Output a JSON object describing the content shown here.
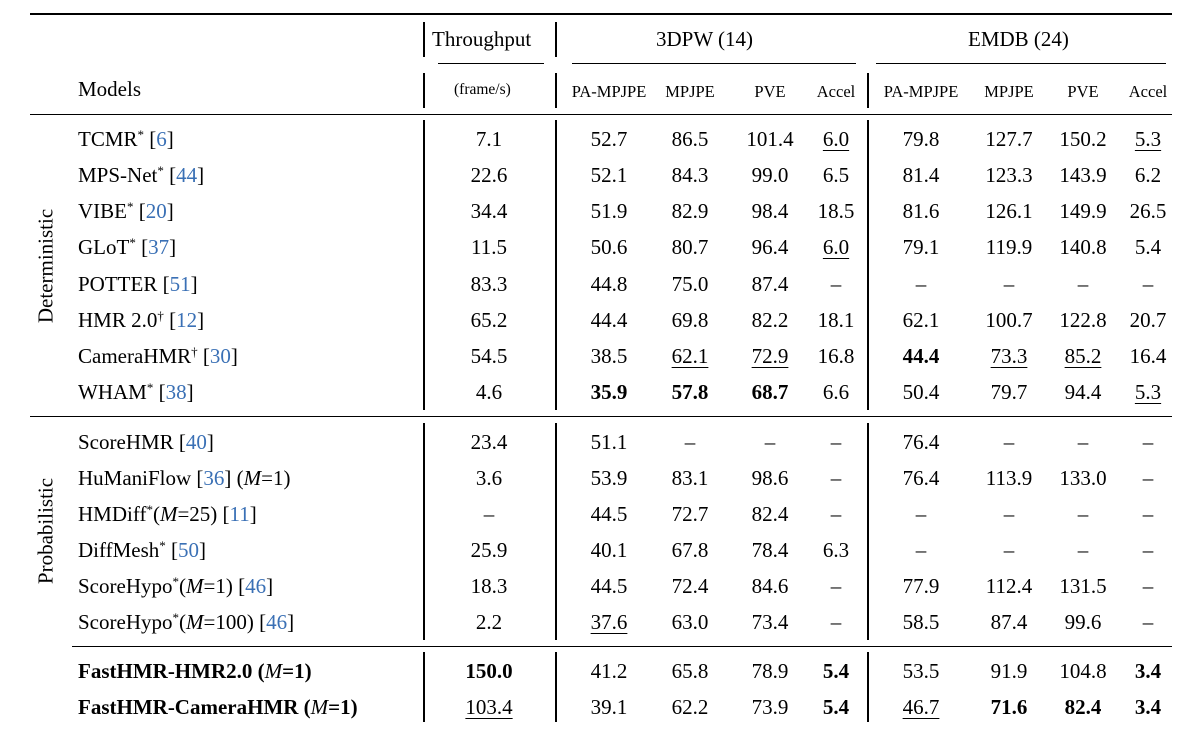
{
  "header": {
    "models": "Models",
    "throughput": "Throughput",
    "throughput_unit": "(frame/s)",
    "group_3dpw": "3DPW (14)",
    "group_emdb": "EMDB (24)",
    "metrics": [
      "PA-MPJPE",
      "MPJPE",
      "PVE",
      "Accel",
      "PA-MPJPE",
      "MPJPE",
      "PVE",
      "Accel"
    ]
  },
  "groups": {
    "deterministic": "Deterministic",
    "probabilistic": "Probabilistic"
  },
  "rows": [
    {
      "section": "det",
      "bold_name": false,
      "parts": [
        {
          "t": "TCMR"
        },
        {
          "t": "*",
          "k": "sup"
        },
        {
          "t": " ["
        },
        {
          "t": "6",
          "k": "ref"
        },
        {
          "t": "]"
        }
      ],
      "values": [
        "7.1",
        "52.7",
        "86.5",
        "101.4",
        "6.0",
        "79.8",
        "127.7",
        "150.2",
        "5.3"
      ],
      "bold": [],
      "underline": [
        4,
        8
      ]
    },
    {
      "section": "det",
      "bold_name": false,
      "parts": [
        {
          "t": "MPS-Net"
        },
        {
          "t": "*",
          "k": "sup"
        },
        {
          "t": " ["
        },
        {
          "t": "44",
          "k": "ref"
        },
        {
          "t": "]"
        }
      ],
      "values": [
        "22.6",
        "52.1",
        "84.3",
        "99.0",
        "6.5",
        "81.4",
        "123.3",
        "143.9",
        "6.2"
      ],
      "bold": [],
      "underline": []
    },
    {
      "section": "det",
      "bold_name": false,
      "parts": [
        {
          "t": "VIBE"
        },
        {
          "t": "*",
          "k": "sup"
        },
        {
          "t": " ["
        },
        {
          "t": "20",
          "k": "ref"
        },
        {
          "t": "]"
        }
      ],
      "values": [
        "34.4",
        "51.9",
        "82.9",
        "98.4",
        "18.5",
        "81.6",
        "126.1",
        "149.9",
        "26.5"
      ],
      "bold": [],
      "underline": []
    },
    {
      "section": "det",
      "bold_name": false,
      "parts": [
        {
          "t": "GLoT"
        },
        {
          "t": "*",
          "k": "sup"
        },
        {
          "t": " ["
        },
        {
          "t": "37",
          "k": "ref"
        },
        {
          "t": "]"
        }
      ],
      "values": [
        "11.5",
        "50.6",
        "80.7",
        "96.4",
        "6.0",
        "79.1",
        "119.9",
        "140.8",
        "5.4"
      ],
      "bold": [],
      "underline": [
        4
      ]
    },
    {
      "section": "det",
      "bold_name": false,
      "parts": [
        {
          "t": "POTTER ["
        },
        {
          "t": "51",
          "k": "ref"
        },
        {
          "t": "]"
        }
      ],
      "values": [
        "83.3",
        "44.8",
        "75.0",
        "87.4",
        "–",
        "–",
        "–",
        "–",
        "–"
      ],
      "bold": [],
      "underline": []
    },
    {
      "section": "det",
      "bold_name": false,
      "parts": [
        {
          "t": "HMR 2.0"
        },
        {
          "t": "†",
          "k": "sup"
        },
        {
          "t": " ["
        },
        {
          "t": "12",
          "k": "ref"
        },
        {
          "t": "]"
        }
      ],
      "values": [
        "65.2",
        "44.4",
        "69.8",
        "82.2",
        "18.1",
        "62.1",
        "100.7",
        "122.8",
        "20.7"
      ],
      "bold": [],
      "underline": []
    },
    {
      "section": "det",
      "bold_name": false,
      "parts": [
        {
          "t": "CameraHMR"
        },
        {
          "t": "†",
          "k": "sup"
        },
        {
          "t": " ["
        },
        {
          "t": "30",
          "k": "ref"
        },
        {
          "t": "]"
        }
      ],
      "values": [
        "54.5",
        "38.5",
        "62.1",
        "72.9",
        "16.8",
        "44.4",
        "73.3",
        "85.2",
        "16.4"
      ],
      "bold": [
        5
      ],
      "underline": [
        2,
        3,
        6,
        7
      ]
    },
    {
      "section": "det",
      "bold_name": false,
      "parts": [
        {
          "t": "WHAM"
        },
        {
          "t": "*",
          "k": "sup"
        },
        {
          "t": " ["
        },
        {
          "t": "38",
          "k": "ref"
        },
        {
          "t": "]"
        }
      ],
      "values": [
        "4.6",
        "35.9",
        "57.8",
        "68.7",
        "6.6",
        "50.4",
        "79.7",
        "94.4",
        "5.3"
      ],
      "bold": [
        1,
        2,
        3
      ],
      "underline": [
        8
      ]
    },
    {
      "section": "prob",
      "bold_name": false,
      "parts": [
        {
          "t": "ScoreHMR ["
        },
        {
          "t": "40",
          "k": "ref"
        },
        {
          "t": "]"
        }
      ],
      "values": [
        "23.4",
        "51.1",
        "–",
        "–",
        "–",
        "76.4",
        "–",
        "–",
        "–"
      ],
      "bold": [],
      "underline": []
    },
    {
      "section": "prob",
      "bold_name": false,
      "parts": [
        {
          "t": "HuManiFlow ["
        },
        {
          "t": "36",
          "k": "ref"
        },
        {
          "t": "] ("
        },
        {
          "t": "M",
          "k": "it"
        },
        {
          "t": "=1)"
        }
      ],
      "values": [
        "3.6",
        "53.9",
        "83.1",
        "98.6",
        "–",
        "76.4",
        "113.9",
        "133.0",
        "–"
      ],
      "bold": [],
      "underline": []
    },
    {
      "section": "prob",
      "bold_name": false,
      "parts": [
        {
          "t": "HMDiff"
        },
        {
          "t": "*",
          "k": "sup"
        },
        {
          "t": "("
        },
        {
          "t": "M",
          "k": "it"
        },
        {
          "t": "=25) ["
        },
        {
          "t": "11",
          "k": "ref"
        },
        {
          "t": "]"
        }
      ],
      "values": [
        "–",
        "44.5",
        "72.7",
        "82.4",
        "–",
        "–",
        "–",
        "–",
        "–"
      ],
      "bold": [],
      "underline": []
    },
    {
      "section": "prob",
      "bold_name": false,
      "parts": [
        {
          "t": "DiffMesh"
        },
        {
          "t": "*",
          "k": "sup"
        },
        {
          "t": " ["
        },
        {
          "t": "50",
          "k": "ref"
        },
        {
          "t": "]"
        }
      ],
      "values": [
        "25.9",
        "40.1",
        "67.8",
        "78.4",
        "6.3",
        "–",
        "–",
        "–",
        "–"
      ],
      "bold": [],
      "underline": []
    },
    {
      "section": "prob",
      "bold_name": false,
      "parts": [
        {
          "t": "ScoreHypo"
        },
        {
          "t": "*",
          "k": "sup"
        },
        {
          "t": "("
        },
        {
          "t": "M",
          "k": "it"
        },
        {
          "t": "=1) ["
        },
        {
          "t": "46",
          "k": "ref"
        },
        {
          "t": "]"
        }
      ],
      "values": [
        "18.3",
        "44.5",
        "72.4",
        "84.6",
        "–",
        "77.9",
        "112.4",
        "131.5",
        "–"
      ],
      "bold": [],
      "underline": []
    },
    {
      "section": "prob",
      "bold_name": false,
      "parts": [
        {
          "t": "ScoreHypo"
        },
        {
          "t": "*",
          "k": "sup"
        },
        {
          "t": "("
        },
        {
          "t": "M",
          "k": "it"
        },
        {
          "t": "=100) ["
        },
        {
          "t": "46",
          "k": "ref"
        },
        {
          "t": "]"
        }
      ],
      "values": [
        "2.2",
        "37.6",
        "63.0",
        "73.4",
        "–",
        "58.5",
        "87.4",
        "99.6",
        "–"
      ],
      "bold": [],
      "underline": [
        1
      ]
    },
    {
      "section": "ours",
      "bold_name": true,
      "parts": [
        {
          "t": "FastHMR-HMR2.0 ("
        },
        {
          "t": "M",
          "k": "it"
        },
        {
          "t": "=1)"
        }
      ],
      "values": [
        "150.0",
        "41.2",
        "65.8",
        "78.9",
        "5.4",
        "53.5",
        "91.9",
        "104.8",
        "3.4"
      ],
      "bold": [
        0,
        4,
        8
      ],
      "underline": []
    },
    {
      "section": "ours",
      "bold_name": true,
      "parts": [
        {
          "t": "FastHMR-CameraHMR ("
        },
        {
          "t": "M",
          "k": "it"
        },
        {
          "t": "=1)"
        }
      ],
      "values": [
        "103.4",
        "39.1",
        "62.2",
        "73.9",
        "5.4",
        "46.7",
        "71.6",
        "82.4",
        "3.4"
      ],
      "bold": [
        4,
        6,
        7,
        8
      ],
      "underline": [
        0,
        5
      ]
    }
  ]
}
